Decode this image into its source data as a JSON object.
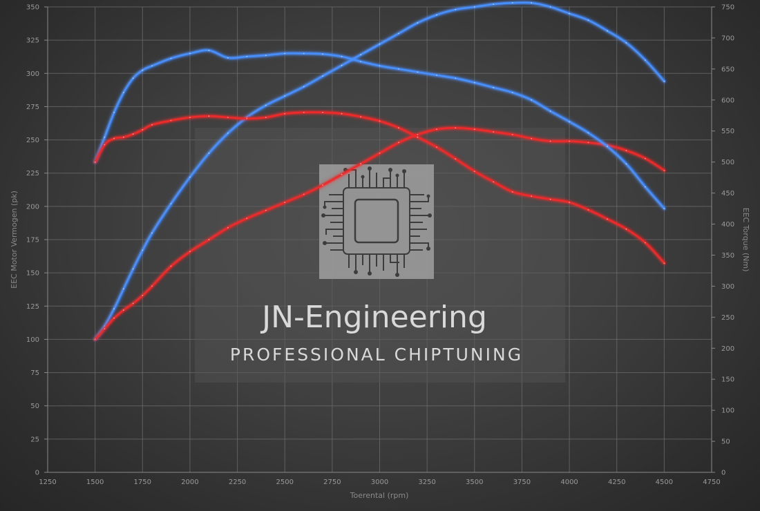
{
  "chart_data": {
    "type": "line",
    "xlabel": "Toerental (rpm)",
    "ylabel_left": "EEC Motor Vermogen (pk)",
    "ylabel_right": "EEC Torque (Nm)",
    "xlim": [
      1250,
      4750
    ],
    "xticks": [
      1250,
      1500,
      1750,
      2000,
      2250,
      2500,
      2750,
      3000,
      3250,
      3500,
      3750,
      4000,
      4250,
      4500,
      4750
    ],
    "ylim_left": [
      0,
      350
    ],
    "yticks_left": [
      0,
      25,
      50,
      75,
      100,
      125,
      150,
      175,
      200,
      225,
      250,
      275,
      300,
      325,
      350
    ],
    "ylim_right": [
      0,
      750
    ],
    "yticks_right": [
      0,
      50,
      100,
      150,
      200,
      250,
      300,
      350,
      400,
      450,
      500,
      550,
      600,
      650,
      700,
      750
    ],
    "grid": true,
    "series": [
      {
        "axis": "left",
        "color": "#4a90ff",
        "x": [
          1500,
          1550,
          1600,
          1650,
          1700,
          1750,
          1800,
          1900,
          2000,
          2100,
          2200,
          2300,
          2400,
          2500,
          2600,
          2700,
          2800,
          2900,
          3000,
          3100,
          3200,
          3300,
          3400,
          3500,
          3600,
          3700,
          3800,
          3900,
          4000,
          4100,
          4200,
          4300,
          4400,
          4500
        ],
        "y": [
          100,
          110,
          123,
          138,
          153,
          167,
          180,
          202,
          222,
          240,
          255,
          267,
          276,
          283,
          290,
          298,
          306,
          314,
          322,
          330,
          338,
          344,
          348,
          350,
          352,
          353,
          353,
          350,
          345,
          340,
          332,
          323,
          310,
          294
        ]
      },
      {
        "axis": "left",
        "color": "#ee2a2a",
        "x": [
          1500,
          1550,
          1600,
          1650,
          1700,
          1750,
          1800,
          1900,
          2000,
          2100,
          2200,
          2300,
          2400,
          2500,
          2600,
          2700,
          2800,
          2900,
          3000,
          3100,
          3200,
          3300,
          3400,
          3500,
          3600,
          3700,
          3800,
          3900,
          4000,
          4100,
          4200,
          4300,
          4400,
          4500
        ],
        "y": [
          100,
          108,
          116,
          122,
          127,
          133,
          140,
          155,
          166,
          175,
          184,
          191,
          197,
          203,
          209,
          216,
          224,
          232,
          240,
          248,
          254,
          258,
          259,
          258,
          256,
          254,
          251,
          249,
          249,
          248,
          246,
          242,
          236,
          227
        ]
      },
      {
        "axis": "right",
        "color": "#4a90ff",
        "x": [
          1500,
          1550,
          1600,
          1650,
          1700,
          1750,
          1800,
          1900,
          2000,
          2100,
          2200,
          2300,
          2400,
          2500,
          2600,
          2700,
          2800,
          2900,
          3000,
          3100,
          3200,
          3300,
          3400,
          3500,
          3600,
          3700,
          3800,
          3900,
          4000,
          4100,
          4200,
          4300,
          4400,
          4500
        ],
        "y": [
          500,
          540,
          580,
          612,
          635,
          648,
          655,
          667,
          675,
          680,
          668,
          670,
          672,
          675,
          675,
          674,
          670,
          662,
          655,
          650,
          645,
          640,
          635,
          628,
          620,
          612,
          600,
          582,
          565,
          547,
          525,
          497,
          460,
          425
        ]
      },
      {
        "axis": "right",
        "color": "#ee2a2a",
        "x": [
          1500,
          1550,
          1600,
          1650,
          1700,
          1750,
          1800,
          1900,
          2000,
          2100,
          2200,
          2300,
          2400,
          2500,
          2600,
          2700,
          2800,
          2900,
          3000,
          3100,
          3200,
          3300,
          3400,
          3500,
          3600,
          3700,
          3800,
          3900,
          4000,
          4100,
          4200,
          4300,
          4400,
          4500
        ],
        "y": [
          500,
          528,
          538,
          540,
          545,
          552,
          560,
          567,
          572,
          574,
          572,
          570,
          572,
          578,
          580,
          580,
          578,
          573,
          566,
          555,
          540,
          524,
          505,
          485,
          468,
          452,
          445,
          440,
          435,
          423,
          408,
          392,
          370,
          337
        ]
      }
    ]
  },
  "watermark": {
    "title": "JN-Engineering",
    "subtitle": "PROFESSIONAL CHIPTUNING"
  }
}
